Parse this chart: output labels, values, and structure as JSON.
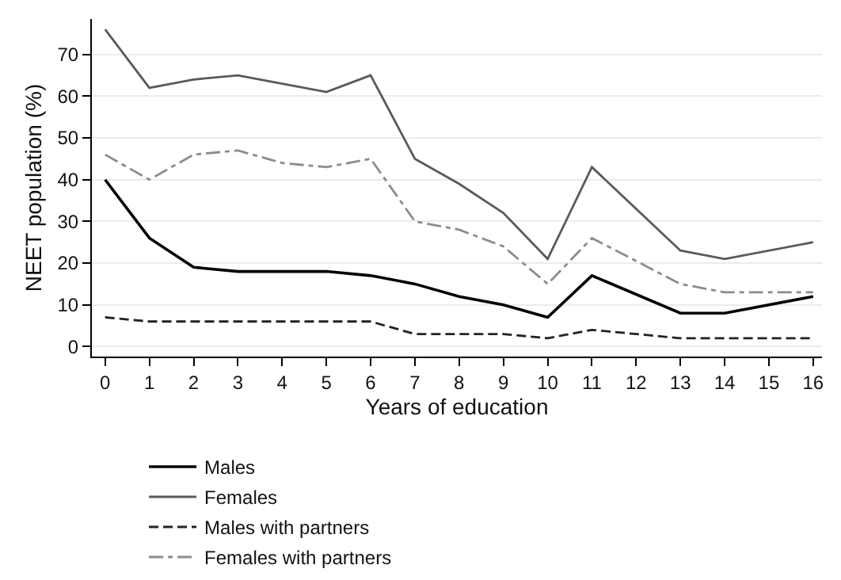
{
  "chart_data": {
    "type": "line",
    "xlabel": "Years of education",
    "ylabel": "NEET population (%)",
    "x": [
      0,
      1,
      2,
      3,
      4,
      5,
      6,
      7,
      8,
      9,
      10,
      11,
      13,
      14,
      16
    ],
    "series": [
      {
        "name": "Males",
        "color": "#000000",
        "line_style": "solid",
        "values": [
          40,
          26,
          19,
          18,
          18,
          18,
          17,
          15,
          12,
          10,
          7,
          17,
          8,
          8,
          12
        ]
      },
      {
        "name": "Females",
        "color": "#5a5a5a",
        "line_style": "solid",
        "values": [
          76,
          62,
          64,
          65,
          63,
          61,
          65,
          45,
          39,
          32,
          21,
          43,
          23,
          21,
          25
        ]
      },
      {
        "name": "Males with partners",
        "color": "#222222",
        "line_style": "dashed",
        "values": [
          7,
          6,
          6,
          6,
          6,
          6,
          6,
          3,
          3,
          3,
          2,
          4,
          2,
          2,
          2
        ]
      },
      {
        "name": "Females with partners",
        "color": "#8c8c8c",
        "line_style": "dashdot",
        "values": [
          46,
          40,
          46,
          47,
          44,
          43,
          45,
          30,
          28,
          24,
          15,
          26,
          15,
          13,
          13
        ]
      }
    ],
    "xlim": [
      -0.3,
      16.2
    ],
    "xticks": [
      0,
      1,
      2,
      3,
      4,
      5,
      6,
      7,
      8,
      9,
      10,
      11,
      12,
      13,
      14,
      15,
      16
    ],
    "ylim": [
      -2.4,
      78.5
    ],
    "yticks": [
      0,
      10,
      20,
      30,
      40,
      50,
      60,
      70
    ],
    "grid": "y",
    "legend": "bottom",
    "marker": "none"
  }
}
